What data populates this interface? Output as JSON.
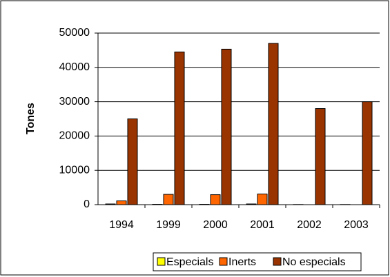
{
  "chart_data": {
    "type": "bar",
    "y_label": "Tones",
    "categories": [
      "1994",
      "1999",
      "2000",
      "2001",
      "2002",
      "2003"
    ],
    "series": [
      {
        "name": "Especials",
        "color": "#ffff00",
        "values": [
          200,
          100,
          100,
          200,
          50,
          50
        ]
      },
      {
        "name": "Inerts",
        "color": "#ff6600",
        "values": [
          1100,
          3000,
          2900,
          3100,
          0,
          0
        ]
      },
      {
        "name": "No especials",
        "color": "#993300",
        "values": [
          25000,
          44500,
          45300,
          47000,
          28000,
          30000
        ]
      }
    ],
    "ylim": [
      0,
      50000
    ],
    "yticks": [
      0,
      10000,
      20000,
      30000,
      40000,
      50000
    ],
    "grid": true,
    "legend": "bottom"
  }
}
